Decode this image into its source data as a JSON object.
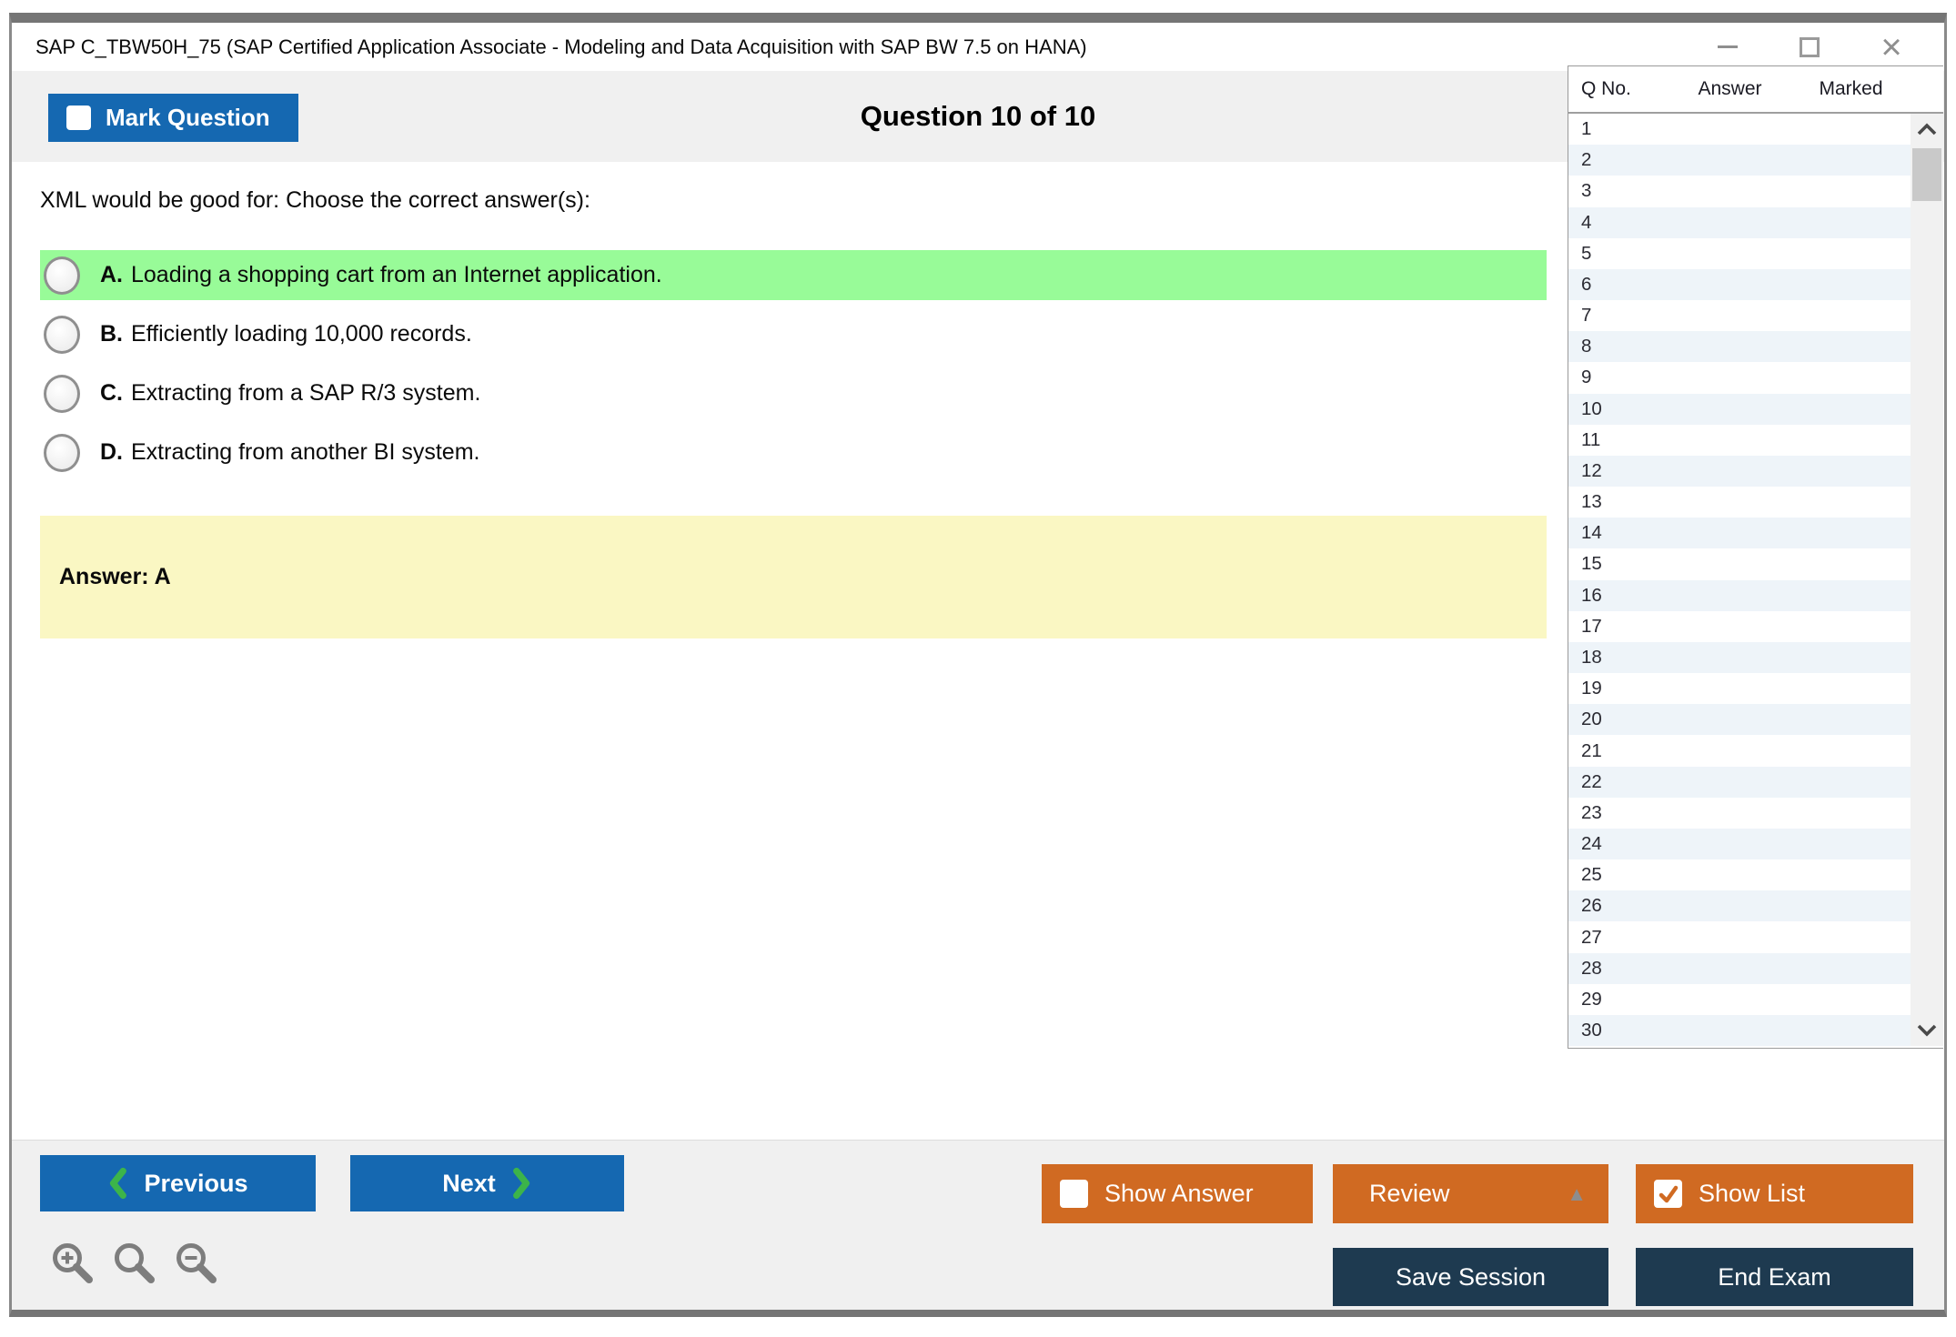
{
  "window": {
    "title": "SAP C_TBW50H_75 (SAP Certified Application Associate - Modeling and Data Acquisition with SAP BW 7.5 on HANA)"
  },
  "header": {
    "mark_question_label": "Mark Question",
    "question_counter": "Question 10 of 10"
  },
  "question": {
    "prompt": "XML would be good for: Choose the correct answer(s):",
    "options": [
      {
        "letter": "A.",
        "text": "Loading a shopping cart from an Internet application.",
        "highlighted": true
      },
      {
        "letter": "B.",
        "text": "Efficiently loading 10,000 records.",
        "highlighted": false
      },
      {
        "letter": "C.",
        "text": "Extracting from a SAP R/3 system.",
        "highlighted": false
      },
      {
        "letter": "D.",
        "text": "Extracting from another BI system.",
        "highlighted": false
      }
    ],
    "answer_label": "Answer: A"
  },
  "question_list": {
    "columns": [
      "Q No.",
      "Answer",
      "Marked"
    ],
    "visible_rows": [
      "1",
      "2",
      "3",
      "4",
      "5",
      "6",
      "7",
      "8",
      "9",
      "10",
      "11",
      "12",
      "13",
      "14",
      "15",
      "16",
      "17",
      "18",
      "19",
      "20",
      "21",
      "22",
      "23",
      "24",
      "25",
      "26",
      "27",
      "28",
      "29",
      "30"
    ]
  },
  "footer": {
    "previous_label": "Previous",
    "next_label": "Next",
    "show_answer_label": "Show Answer",
    "review_label": "Review",
    "show_list_label": "Show List",
    "save_session_label": "Save Session",
    "end_exam_label": "End Exam"
  },
  "checkboxes": {
    "mark_question_checked": false,
    "show_answer_checked": false,
    "show_list_checked": true
  },
  "icons": {
    "minimize": "horizontal-dash",
    "maximize": "outline-square",
    "close": "×",
    "previous": "chevron-left",
    "next": "chevron-right",
    "review_collapse": "▲",
    "zoom_tools": [
      "zoom-in-magnifier",
      "magnifier",
      "zoom-out-magnifier"
    ],
    "scroll_up": "chevron-up",
    "scroll_down": "chevron-down",
    "show_list_check": "checkmark"
  },
  "colors": {
    "primary_blue": "#1568b1",
    "accent_orange": "#d06a22",
    "dark_navy": "#1e3a50",
    "highlight_green": "#98fb98",
    "answer_yellow": "#faf7c3",
    "row_stripe": "#eef4f9",
    "chevron_green": "#3cb44a",
    "band_gray": "#f0f0f0"
  }
}
